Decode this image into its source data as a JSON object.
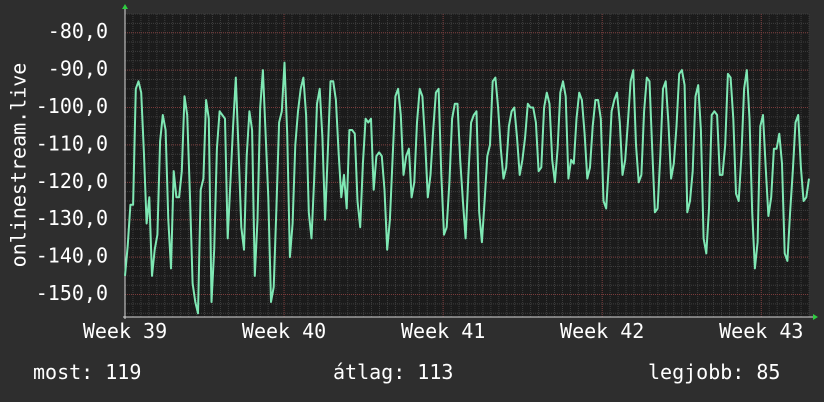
{
  "chart_data": {
    "type": "line",
    "ylabel": "onlinestream.live",
    "ylim": [
      -156,
      -75
    ],
    "yticks": [
      -80,
      -90,
      -100,
      -110,
      -120,
      -130,
      -140,
      -150
    ],
    "ytick_labels": [
      "-80,0",
      "-90,0",
      "-100,0",
      "-110,0",
      "-120,0",
      "-130,0",
      "-140,0",
      "-150,0"
    ],
    "xlim": [
      0,
      43
    ],
    "xticks": [
      0,
      10,
      20,
      30,
      40
    ],
    "xtick_labels": [
      "Week 39",
      "Week 40",
      "Week 41",
      "Week 42",
      "Week 43"
    ],
    "grid": true,
    "series": [
      {
        "values": [
          -145,
          -137,
          -126,
          -126,
          -95,
          -93,
          -96,
          -112,
          -131,
          -124,
          -145,
          -138,
          -134,
          -109,
          -102,
          -106,
          -130,
          -143,
          -117,
          -124,
          -124,
          -117,
          -97,
          -102,
          -123,
          -147,
          -152,
          -155,
          -122,
          -119,
          -98,
          -103,
          -152,
          -138,
          -111,
          -101,
          -102,
          -103,
          -135,
          -120,
          -105,
          -92,
          -111,
          -132,
          -138,
          -113,
          -101,
          -106,
          -145,
          -130,
          -100,
          -90,
          -107,
          -124,
          -152,
          -148,
          -127,
          -104,
          -101,
          -88,
          -107,
          -140,
          -131,
          -110,
          -101,
          -95,
          -92,
          -102,
          -128,
          -135,
          -119,
          -99,
          -95,
          -108,
          -130,
          -112,
          -93,
          -93,
          -98,
          -112,
          -124,
          -118,
          -127,
          -106,
          -106,
          -107,
          -125,
          -132,
          -115,
          -103,
          -104,
          -103,
          -122,
          -113,
          -112,
          -113,
          -122,
          -138,
          -130,
          -113,
          -97,
          -95,
          -102,
          -118,
          -113,
          -111,
          -124,
          -120,
          -104,
          -95,
          -97,
          -109,
          -124,
          -118,
          -106,
          -96,
          -95,
          -118,
          -134,
          -132,
          -120,
          -103,
          -99,
          -99,
          -114,
          -125,
          -135,
          -118,
          -104,
          -102,
          -101,
          -128,
          -136,
          -125,
          -113,
          -110,
          -93,
          -92,
          -100,
          -111,
          -119,
          -116,
          -105,
          -101,
          -100,
          -108,
          -118,
          -114,
          -108,
          -99,
          -100,
          -100,
          -104,
          -117,
          -116,
          -100,
          -96,
          -99,
          -114,
          -120,
          -111,
          -96,
          -93,
          -97,
          -119,
          -114,
          -115,
          -103,
          -96,
          -98,
          -107,
          -119,
          -116,
          -105,
          -98,
          -98,
          -103,
          -125,
          -127,
          -115,
          -101,
          -98,
          -96,
          -104,
          -118,
          -114,
          -104,
          -93,
          -90,
          -110,
          -120,
          -118,
          -101,
          -92,
          -93,
          -111,
          -128,
          -127,
          -113,
          -95,
          -93,
          -104,
          -119,
          -115,
          -105,
          -91,
          -90,
          -94,
          -128,
          -125,
          -117,
          -97,
          -94,
          -106,
          -135,
          -139,
          -127,
          -102,
          -101,
          -102,
          -118,
          -118,
          -110,
          -91,
          -92,
          -103,
          -123,
          -125,
          -113,
          -95,
          -90,
          -103,
          -128,
          -143,
          -136,
          -105,
          -102,
          -116,
          -129,
          -124,
          -111,
          -111,
          -107,
          -115,
          -139,
          -141,
          -128,
          -117,
          -104,
          -102,
          -116,
          -125,
          -124,
          -119
        ]
      }
    ],
    "current_label": "most: 119",
    "average_label": "átlag: 113",
    "best_label": "legjobb: 85"
  }
}
